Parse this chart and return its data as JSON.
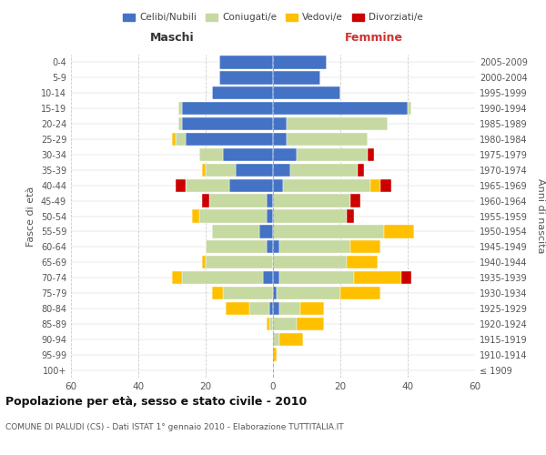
{
  "age_groups": [
    "100+",
    "95-99",
    "90-94",
    "85-89",
    "80-84",
    "75-79",
    "70-74",
    "65-69",
    "60-64",
    "55-59",
    "50-54",
    "45-49",
    "40-44",
    "35-39",
    "30-34",
    "25-29",
    "20-24",
    "15-19",
    "10-14",
    "5-9",
    "0-4"
  ],
  "birth_years": [
    "≤ 1909",
    "1910-1914",
    "1915-1919",
    "1920-1924",
    "1925-1929",
    "1930-1934",
    "1935-1939",
    "1940-1944",
    "1945-1949",
    "1950-1954",
    "1955-1959",
    "1960-1964",
    "1965-1969",
    "1970-1974",
    "1975-1979",
    "1980-1984",
    "1985-1989",
    "1990-1994",
    "1995-1999",
    "2000-2004",
    "2005-2009"
  ],
  "maschi": {
    "celibi": [
      0,
      0,
      0,
      0,
      1,
      0,
      3,
      0,
      2,
      4,
      2,
      2,
      13,
      11,
      15,
      26,
      27,
      27,
      18,
      16,
      16
    ],
    "coniugati": [
      0,
      0,
      0,
      1,
      6,
      15,
      24,
      20,
      18,
      14,
      20,
      17,
      13,
      9,
      7,
      3,
      1,
      1,
      0,
      0,
      0
    ],
    "vedovi": [
      0,
      0,
      0,
      1,
      7,
      3,
      3,
      1,
      0,
      0,
      2,
      0,
      0,
      1,
      0,
      1,
      0,
      0,
      0,
      0,
      0
    ],
    "divorziati": [
      0,
      0,
      0,
      0,
      0,
      0,
      0,
      0,
      0,
      0,
      0,
      2,
      3,
      0,
      0,
      0,
      0,
      0,
      0,
      0,
      0
    ]
  },
  "femmine": {
    "nubili": [
      0,
      0,
      0,
      0,
      2,
      1,
      2,
      0,
      2,
      0,
      0,
      0,
      3,
      5,
      7,
      4,
      4,
      40,
      20,
      14,
      16
    ],
    "coniugate": [
      0,
      0,
      2,
      7,
      6,
      19,
      22,
      22,
      21,
      33,
      22,
      23,
      26,
      20,
      21,
      24,
      30,
      1,
      0,
      0,
      0
    ],
    "vedove": [
      0,
      1,
      7,
      8,
      7,
      12,
      14,
      9,
      9,
      9,
      0,
      0,
      3,
      0,
      0,
      0,
      0,
      0,
      0,
      0,
      0
    ],
    "divorziate": [
      0,
      0,
      0,
      0,
      0,
      0,
      3,
      0,
      0,
      0,
      2,
      3,
      3,
      2,
      2,
      0,
      0,
      0,
      0,
      0,
      0
    ]
  },
  "colors": {
    "celibi_nubili": "#4472c4",
    "coniugati": "#c5d9a0",
    "vedovi": "#ffc000",
    "divorziati": "#cc0000"
  },
  "title": "Popolazione per età, sesso e stato civile - 2010",
  "subtitle": "COMUNE DI PALUDI (CS) - Dati ISTAT 1° gennaio 2010 - Elaborazione TUTTITALIA.IT",
  "xlabel_left": "Maschi",
  "xlabel_right": "Femmine",
  "ylabel_left": "Fasce di età",
  "ylabel_right": "Anni di nascita",
  "xlim": 60,
  "legend_labels": [
    "Celibi/Nubili",
    "Coniugati/e",
    "Vedovi/e",
    "Divorziati/e"
  ],
  "background_color": "#ffffff",
  "grid_color": "#cccccc"
}
